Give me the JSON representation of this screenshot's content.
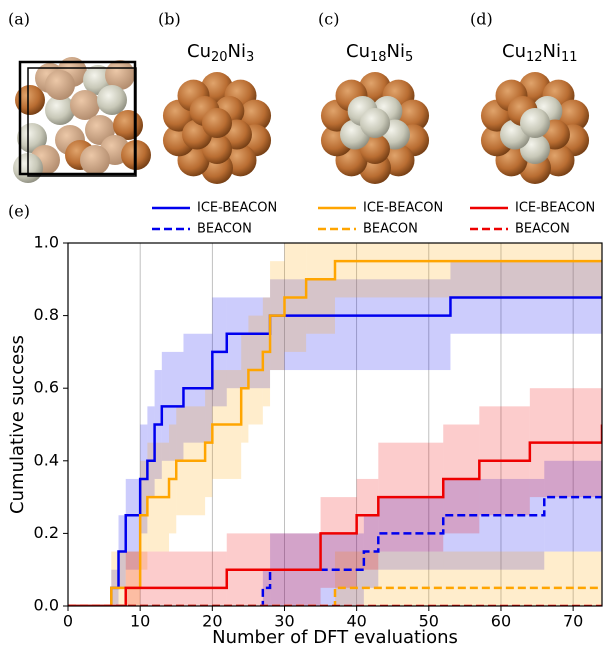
{
  "panels": [
    {
      "label": "(a)"
    },
    {
      "label": "(b)",
      "formula": [
        {
          "symbol": "Cu",
          "sub": "20"
        },
        {
          "symbol": "Ni",
          "sub": "3"
        }
      ]
    },
    {
      "label": "(c)",
      "formula": [
        {
          "symbol": "Cu",
          "sub": "18"
        },
        {
          "symbol": "Ni",
          "sub": "5"
        }
      ]
    },
    {
      "label": "(d)",
      "formula": [
        {
          "symbol": "Cu",
          "sub": "12"
        },
        {
          "symbol": "Ni",
          "sub": "11"
        }
      ]
    },
    {
      "label": "(e)"
    }
  ],
  "chart_data": {
    "type": "step",
    "xlabel": "Number of DFT evaluations",
    "ylabel": "Cumulative success",
    "xlim": [
      0,
      74
    ],
    "ylim": [
      0,
      1
    ],
    "xticks": [
      0,
      10,
      20,
      30,
      40,
      50,
      60,
      70
    ],
    "yticks": [
      {
        "value": 0,
        "label": "0.0"
      },
      {
        "value": 0.2,
        "label": "0.2"
      },
      {
        "value": 0.4,
        "label": "0.4"
      },
      {
        "value": 0.6,
        "label": "0.6"
      },
      {
        "value": 0.8,
        "label": "0.8"
      },
      {
        "value": 1,
        "label": "1.0"
      }
    ],
    "grid": "x",
    "series": [
      {
        "name": "ICE-BEACON",
        "color": "#0000ee",
        "dashed": false,
        "x": [
          0,
          6,
          7,
          8,
          10,
          11,
          12,
          13,
          16,
          20,
          22,
          28,
          53
        ],
        "values": [
          0,
          0.05,
          0.15,
          0.25,
          0.35,
          0.4,
          0.5,
          0.55,
          0.6,
          0.7,
          0.75,
          0.8,
          0.85
        ],
        "lower": [
          0,
          0,
          0.05,
          0.1,
          0.2,
          0.3,
          0.35,
          0.4,
          0.45,
          0.55,
          0.6,
          0.65,
          0.75
        ],
        "upper": [
          0,
          0.1,
          0.25,
          0.35,
          0.5,
          0.55,
          0.65,
          0.7,
          0.75,
          0.85,
          0.85,
          0.9,
          0.95
        ]
      },
      {
        "name": "BEACON",
        "color": "#0000ee",
        "dashed": true,
        "x": [
          0,
          27,
          28,
          41,
          43,
          52,
          66
        ],
        "values": [
          0,
          0.05,
          0.1,
          0.15,
          0.2,
          0.25,
          0.3
        ],
        "lower": [
          0,
          0,
          0,
          0.05,
          0.1,
          0.1,
          0.15
        ],
        "upper": [
          0,
          0.1,
          0.2,
          0.25,
          0.3,
          0.35,
          0.4
        ]
      },
      {
        "name": "ICE-BEACON",
        "color": "#ffa500",
        "dashed": false,
        "x": [
          0,
          6,
          10,
          11,
          14,
          15,
          19,
          20,
          24,
          25,
          27,
          28,
          30,
          33,
          37
        ],
        "values": [
          0,
          0.05,
          0.25,
          0.3,
          0.35,
          0.4,
          0.45,
          0.5,
          0.6,
          0.65,
          0.7,
          0.8,
          0.85,
          0.9,
          0.95
        ],
        "lower": [
          0,
          0,
          0.1,
          0.15,
          0.2,
          0.25,
          0.3,
          0.35,
          0.45,
          0.5,
          0.55,
          0.65,
          0.7,
          0.75,
          0.85
        ],
        "upper": [
          0,
          0.15,
          0.4,
          0.45,
          0.5,
          0.55,
          0.6,
          0.65,
          0.75,
          0.8,
          0.85,
          0.95,
          1,
          1,
          1
        ]
      },
      {
        "name": "BEACON",
        "color": "#ffa500",
        "dashed": true,
        "x": [
          0,
          37
        ],
        "values": [
          0,
          0.05
        ],
        "lower": [
          0,
          0
        ],
        "upper": [
          0,
          0.15
        ]
      },
      {
        "name": "ICE-BEACON",
        "color": "#ee0000",
        "dashed": false,
        "x": [
          0,
          8,
          22,
          35,
          40,
          43,
          52,
          57,
          64,
          74
        ],
        "values": [
          0,
          0.05,
          0.1,
          0.2,
          0.25,
          0.3,
          0.35,
          0.4,
          0.45,
          0.5
        ],
        "lower": [
          0,
          0,
          0,
          0.05,
          0.1,
          0.15,
          0.2,
          0.25,
          0.3,
          0.35
        ],
        "upper": [
          0,
          0.15,
          0.2,
          0.3,
          0.35,
          0.45,
          0.5,
          0.55,
          0.6,
          0.65
        ]
      },
      {
        "name": "BEACON",
        "color": "#ee0000",
        "dashed": true,
        "x": [
          0
        ],
        "values": [
          0
        ],
        "lower": [
          0
        ],
        "upper": [
          0
        ]
      }
    ]
  }
}
